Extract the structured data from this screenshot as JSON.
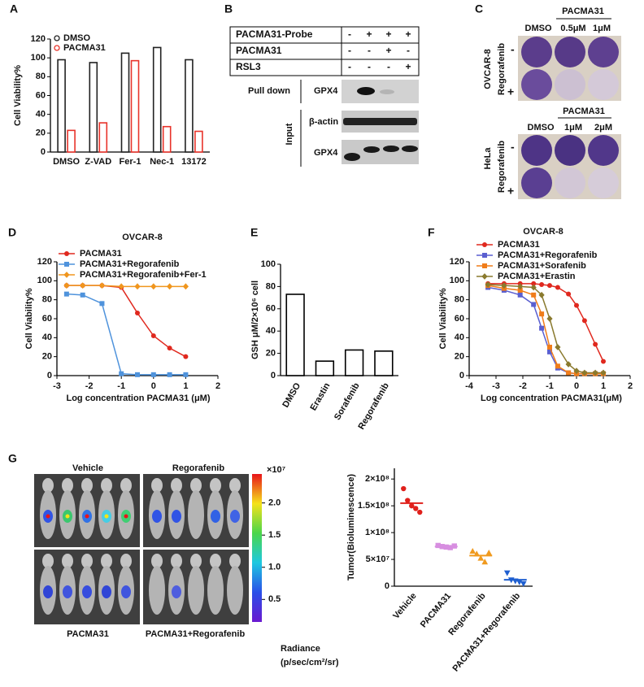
{
  "panel_labels": [
    "A",
    "B",
    "C",
    "D",
    "E",
    "F",
    "G"
  ],
  "chart_data": [
    {
      "type": "bar",
      "ylabel": "Cell Viability%",
      "categories": [
        "DMSO",
        "Z-VAD",
        "Fer-1",
        "Nec-1",
        "13172"
      ],
      "series": [
        {
          "name": "DMSO",
          "color": "#222222",
          "values": [
            98,
            95,
            105,
            111,
            98
          ]
        },
        {
          "name": "PACMA31",
          "color": "#e8332a",
          "values": [
            23,
            31,
            97,
            27,
            22
          ]
        }
      ],
      "ylim": [
        0,
        120
      ],
      "yticks": [
        0,
        20,
        40,
        60,
        80,
        100,
        120
      ]
    },
    {
      "type": "line",
      "title": "OVCAR-8",
      "xlabel": "Log concentration PACMA31 (μM)",
      "ylabel": "Cell Viability%",
      "x": [
        -2.7,
        -2.2,
        -1.6,
        -1,
        -0.5,
        0,
        0.5,
        1
      ],
      "series": [
        {
          "name": "PACMA31",
          "color": "#e0281e",
          "marker": "circle",
          "values": [
            95,
            95,
            95,
            93,
            66,
            42,
            29,
            20
          ]
        },
        {
          "name": "PACMA31+Regorafenib",
          "color": "#4f93dc",
          "marker": "square",
          "values": [
            86,
            85,
            76,
            2,
            1,
            1,
            1,
            1
          ]
        },
        {
          "name": "PACMA31+Regorafenib+Fer-1",
          "color": "#f0961e",
          "marker": "diamond",
          "values": [
            95,
            95,
            95,
            94,
            94,
            94,
            94,
            94
          ]
        }
      ],
      "xlim": [
        -3,
        2
      ],
      "xticks": [
        -3,
        -2,
        -1,
        0,
        1,
        2
      ],
      "ylim": [
        0,
        120
      ],
      "yticks": [
        0,
        20,
        40,
        60,
        80,
        100,
        120
      ]
    },
    {
      "type": "bar",
      "ylabel": "GSH μM/2×10⁶ cell",
      "categories": [
        "DMSO",
        "Erastin",
        "Sorafenib",
        "Regorafenib"
      ],
      "color": "#000000",
      "values": [
        73,
        13,
        23,
        22
      ],
      "ylim": [
        0,
        100
      ],
      "yticks": [
        0,
        20,
        40,
        60,
        80,
        100
      ]
    },
    {
      "type": "line",
      "title": "OVCAR-8",
      "xlabel": "Log concentration PACMA31(μM)",
      "ylabel": "Cell Viability%",
      "x": [
        -3.3,
        -2.7,
        -2.1,
        -1.6,
        -1.3,
        -1,
        -0.7,
        -0.3,
        0,
        0.3,
        0.7,
        1
      ],
      "series": [
        {
          "name": "PACMA31",
          "color": "#e0281e",
          "marker": "circle",
          "values": [
            97,
            97,
            97,
            97,
            96,
            95,
            93,
            86,
            74,
            58,
            33,
            15
          ]
        },
        {
          "name": "PACMA31+Regorafenib",
          "color": "#5a5fd0",
          "marker": "square",
          "values": [
            93,
            90,
            85,
            75,
            50,
            25,
            8,
            3,
            2,
            2,
            2,
            2
          ]
        },
        {
          "name": "PACMA31+Sorafenib",
          "color": "#f07d1a",
          "marker": "square",
          "values": [
            95,
            92,
            90,
            85,
            65,
            30,
            10,
            3,
            2,
            2,
            2,
            2
          ]
        },
        {
          "name": "PACMA31+Erastin",
          "color": "#8a7a2e",
          "marker": "diamond",
          "values": [
            96,
            95,
            94,
            93,
            85,
            60,
            30,
            12,
            5,
            3,
            3,
            3
          ]
        }
      ],
      "xlim": [
        -4,
        2
      ],
      "xticks": [
        -4,
        -3,
        -2,
        -1,
        0,
        1,
        2
      ],
      "ylim": [
        0,
        120
      ],
      "yticks": [
        0,
        20,
        40,
        60,
        80,
        100,
        120
      ]
    },
    {
      "type": "strip",
      "ylabel": "Tumor(Bioluminescence)",
      "categories": [
        "Vehicle",
        "PACMA31",
        "Regorafenib",
        "PACMA31+Regorafenib"
      ],
      "values": [
        [
          182000000,
          160000000,
          150000000,
          145000000,
          138000000
        ],
        [
          76000000,
          74000000,
          73000000,
          72000000,
          75000000
        ],
        [
          65000000,
          60000000,
          52000000,
          45000000,
          62000000
        ],
        [
          25000000,
          12000000,
          10000000,
          8000000,
          5000000
        ]
      ],
      "means": [
        155000000,
        74000000,
        57000000,
        12000000
      ],
      "colors": [
        "#e0201b",
        "#d78ee0",
        "#f09a1e",
        "#1f5fd0"
      ],
      "markers": [
        "circle",
        "square",
        "triangle-up",
        "triangle-down"
      ],
      "ylim": [
        0,
        220000000
      ],
      "yticks": [
        0,
        {
          "value": 50000000,
          "label": "5×10⁷"
        },
        {
          "value": 100000000,
          "label": "1×10⁸"
        },
        {
          "value": 150000000,
          "label": "1.5×10⁸"
        },
        {
          "value": 200000000,
          "label": "2×10⁸"
        }
      ]
    }
  ],
  "blot": {
    "rows": [
      {
        "label": "PACMA31-Probe",
        "marks": [
          "-",
          "+",
          "+",
          "+"
        ]
      },
      {
        "label": "PACMA31",
        "marks": [
          "-",
          "-",
          "+",
          "-"
        ]
      },
      {
        "label": "RSL3",
        "marks": [
          "-",
          "-",
          "-",
          "+"
        ]
      }
    ],
    "pull_down": "Pull down",
    "pull_down_band": "GPX4",
    "input": "Input",
    "input_bands": [
      "β-actin",
      "GPX4"
    ]
  },
  "crystal_violet": [
    {
      "cell_line": "OVCAR-8",
      "treatment": "PACMA31",
      "doses": [
        "DMSO",
        "0.5μM",
        "1μM"
      ],
      "row_factor": "Regorafenib",
      "rows": [
        "-",
        "+"
      ]
    },
    {
      "cell_line": "HeLa",
      "treatment": "PACMA31",
      "doses": [
        "DMSO",
        "1μM",
        "2μM"
      ],
      "row_factor": "Regorafenib",
      "rows": [
        "-",
        "+"
      ]
    }
  ],
  "imaging": {
    "groups": [
      "Vehicle",
      "Regorafenib",
      "PACMA31",
      "PACMA31+Regorafenib"
    ],
    "colorbar": {
      "unit": "×10⁷",
      "lim": [
        0.15,
        2.45
      ],
      "ticks": [
        {
          "value": 2,
          "label": "2.0"
        },
        1.5,
        {
          "value": 1,
          "label": "1.0"
        },
        0.5
      ],
      "label": "Radiance",
      "unit_label": "(p/sec/cm²/sr)"
    }
  }
}
